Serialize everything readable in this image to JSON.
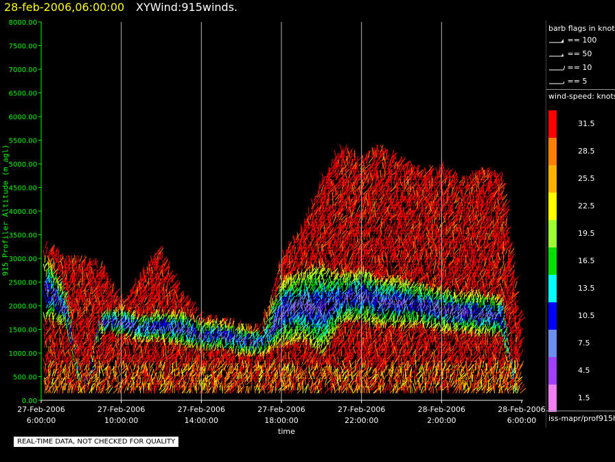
{
  "header": {
    "datetime": "28-feb-2006,06:00:00",
    "product": "XYWind:915winds."
  },
  "legend": {
    "barb_title": "barb flags in knots",
    "barbs": [
      {
        "label": "== 100",
        "kind": "pennant"
      },
      {
        "label": "== 50",
        "kind": "triangle"
      },
      {
        "label": "== 10",
        "kind": "full"
      },
      {
        "label": "== 5",
        "kind": "half"
      }
    ],
    "speed_title": "wind-speed: knots",
    "colorbar": [
      {
        "label": "31.5",
        "color": "#ff0000"
      },
      {
        "label": "28.5",
        "color": "#ff8000"
      },
      {
        "label": "25.5",
        "color": "#ffb000"
      },
      {
        "label": "22.5",
        "color": "#ffff00"
      },
      {
        "label": "19.5",
        "color": "#a0ff30"
      },
      {
        "label": "16.5",
        "color": "#00e000"
      },
      {
        "label": "13.5",
        "color": "#00ffff"
      },
      {
        "label": "10.5",
        "color": "#0000ff"
      },
      {
        "label": "7.5",
        "color": "#6a8ff0"
      },
      {
        "label": "4.5",
        "color": "#a040ff"
      },
      {
        "label": "1.5",
        "color": "#f080f0"
      }
    ],
    "source": "iss-mapr/prof915h"
  },
  "notice": "REAL-TIME DATA, NOT CHECKED FOR QUALITY",
  "chart_data": {
    "type": "scatter",
    "xlabel": "time",
    "ylabel": "915 Profiler Altitude (m agl)",
    "ylim": [
      0,
      8000
    ],
    "xlim": [
      "2006-02-27 06:00",
      "2006-02-28 06:00"
    ],
    "yticks": [
      "0.00",
      "500.00",
      "1000.00",
      "1500.00",
      "2000.00",
      "2500.00",
      "3000.00",
      "3500.00",
      "4000.00",
      "4500.00",
      "5000.00",
      "5500.00",
      "6000.00",
      "6500.00",
      "7000.00",
      "7500.00",
      "8000.00"
    ],
    "xticks": [
      {
        "date": "27-Feb-2006",
        "time": "6:00:00"
      },
      {
        "date": "27-Feb-2006",
        "time": "10:00:00"
      },
      {
        "date": "27-Feb-2006",
        "time": "14:00:00"
      },
      {
        "date": "27-Feb-2006",
        "time": "18:00:00"
      },
      {
        "date": "27-Feb-2006",
        "time": "22:00:00"
      },
      {
        "date": "28-Feb-2006",
        "time": "2:00:00"
      },
      {
        "date": "28-Feb-2006",
        "time": "6:00:00"
      }
    ],
    "grid": "vertical",
    "profiles": [
      {
        "hour": 0.4,
        "top": 3200,
        "low_speed_band": [
          1600,
          2900
        ]
      },
      {
        "hour": 1.2,
        "top": 2900,
        "low_speed_band": [
          1500,
          2200
        ]
      },
      {
        "hour": 2.1,
        "top": 2950,
        "low_speed_band": [
          0,
          0
        ]
      },
      {
        "hour": 3.0,
        "top": 2800,
        "low_speed_band": [
          1400,
          1800
        ]
      },
      {
        "hour": 4.0,
        "top": 2000,
        "low_speed_band": [
          1300,
          1900
        ]
      },
      {
        "hour": 5.0,
        "top": 2600,
        "low_speed_band": [
          1200,
          1700
        ]
      },
      {
        "hour": 5.8,
        "top": 3200,
        "low_speed_band": [
          1200,
          1800
        ]
      },
      {
        "hour": 7.0,
        "top": 2200,
        "low_speed_band": [
          1100,
          1800
        ]
      },
      {
        "hour": 8.0,
        "top": 1700,
        "low_speed_band": [
          1000,
          1600
        ]
      },
      {
        "hour": 9.0,
        "top": 1700,
        "low_speed_band": [
          1000,
          1600
        ]
      },
      {
        "hour": 10.0,
        "top": 1500,
        "low_speed_band": [
          900,
          1500
        ]
      },
      {
        "hour": 11.0,
        "top": 1500,
        "low_speed_band": [
          900,
          1400
        ]
      },
      {
        "hour": 12.0,
        "top": 3000,
        "low_speed_band": [
          1100,
          2500
        ]
      },
      {
        "hour": 13.0,
        "top": 3600,
        "low_speed_band": [
          1200,
          2700
        ]
      },
      {
        "hour": 14.0,
        "top": 4600,
        "low_speed_band": [
          900,
          2800
        ]
      },
      {
        "hour": 15.0,
        "top": 5300,
        "low_speed_band": [
          1600,
          2600
        ]
      },
      {
        "hour": 16.0,
        "top": 5100,
        "low_speed_band": [
          1600,
          2700
        ]
      },
      {
        "hour": 17.0,
        "top": 5300,
        "low_speed_band": [
          1500,
          2500
        ]
      },
      {
        "hour": 18.0,
        "top": 5000,
        "low_speed_band": [
          1500,
          2500
        ]
      },
      {
        "hour": 19.0,
        "top": 4800,
        "low_speed_band": [
          1500,
          2400
        ]
      },
      {
        "hour": 20.0,
        "top": 4900,
        "low_speed_band": [
          1400,
          2300
        ]
      },
      {
        "hour": 21.0,
        "top": 4600,
        "low_speed_band": [
          1400,
          2200
        ]
      },
      {
        "hour": 22.0,
        "top": 4800,
        "low_speed_band": [
          1300,
          2200
        ]
      },
      {
        "hour": 23.0,
        "top": 4700,
        "low_speed_band": [
          1300,
          2100
        ]
      },
      {
        "hour": 23.8,
        "top": 1800,
        "low_speed_band": [
          0,
          0
        ]
      }
    ]
  }
}
